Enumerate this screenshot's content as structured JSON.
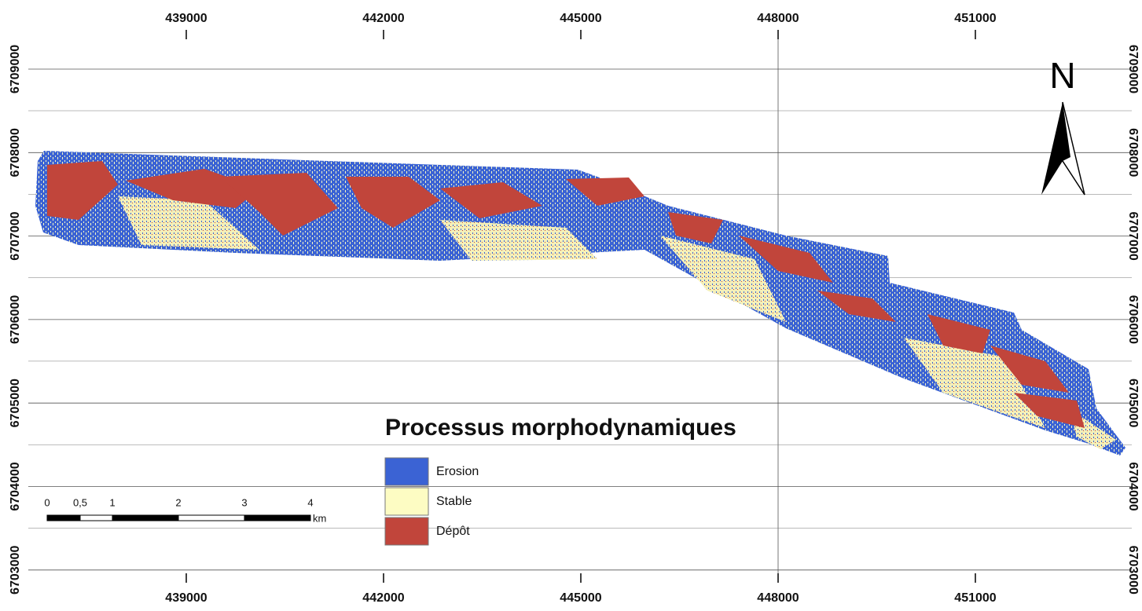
{
  "map": {
    "x_ticks": [
      439000,
      442000,
      445000,
      448000,
      451000
    ],
    "y_ticks": [
      6709000,
      6708000,
      6707000,
      6706000,
      6705000,
      6704000,
      6703000
    ],
    "north": "N",
    "legend": {
      "title": "Processus morphodynamiques",
      "items": [
        {
          "label": "Erosion",
          "color": "#3b63d4"
        },
        {
          "label": "Stable",
          "color": "#fdfcc3"
        },
        {
          "label": "Dépôt",
          "color": "#c1453b"
        }
      ]
    },
    "scale_bar": {
      "labels": [
        "0",
        "0,5",
        "1",
        "2",
        "3",
        "4"
      ],
      "unit": "km"
    }
  }
}
